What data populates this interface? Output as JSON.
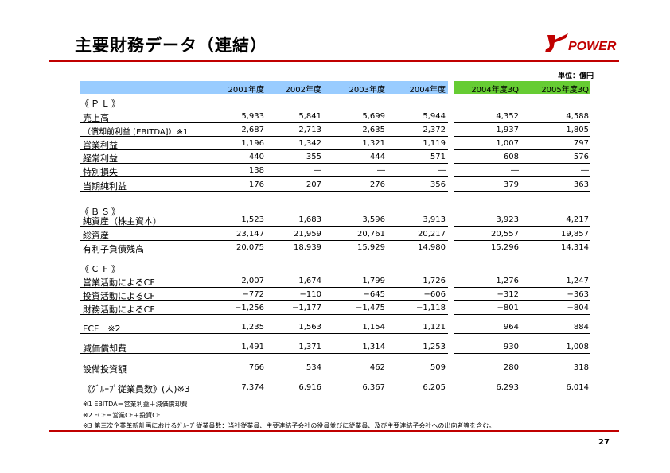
{
  "title": "主要財務データ（連結）",
  "logo_text": "POWER",
  "unit": "単位：億円",
  "columns": [
    "2001年度",
    "2002年度",
    "2003年度",
    "2004年度",
    "2004年度3Q",
    "2005年度3Q"
  ],
  "sections": {
    "pl": "《ＰＬ》",
    "bs": "《ＢＳ》",
    "cf": "《ＣＦ》"
  },
  "rows": {
    "sales": {
      "label": "売上高",
      "values": [
        "5,933",
        "5,841",
        "5,699",
        "5,944",
        "4,352",
        "4,588"
      ]
    },
    "ebitda": {
      "label": "（償却前利益 [EBITDA]）※1",
      "values": [
        "2,687",
        "2,713",
        "2,635",
        "2,372",
        "1,937",
        "1,805"
      ]
    },
    "op_income": {
      "label": "営業利益",
      "values": [
        "1,196",
        "1,342",
        "1,321",
        "1,119",
        "1,007",
        "797"
      ]
    },
    "ordinary": {
      "label": "経常利益",
      "values": [
        "440",
        "355",
        "444",
        "571",
        "608",
        "576"
      ]
    },
    "extra_loss": {
      "label": "特別損失",
      "values": [
        "138",
        "―",
        "―",
        "―",
        "―",
        "―"
      ]
    },
    "net_income": {
      "label": "当期純利益",
      "values": [
        "176",
        "207",
        "276",
        "356",
        "379",
        "363"
      ]
    },
    "net_assets": {
      "label": "純資産（株主資本）",
      "values": [
        "1,523",
        "1,683",
        "3,596",
        "3,913",
        "3,923",
        "4,217"
      ]
    },
    "total_assets": {
      "label": "総資産",
      "values": [
        "23,147",
        "21,959",
        "20,761",
        "20,217",
        "20,557",
        "19,857"
      ]
    },
    "debt": {
      "label": "有利子負債残高",
      "values": [
        "20,075",
        "18,939",
        "15,929",
        "14,980",
        "15,296",
        "14,314"
      ]
    },
    "cf_op": {
      "label": "営業活動によるCF",
      "values": [
        "2,007",
        "1,674",
        "1,799",
        "1,726",
        "1,276",
        "1,247"
      ]
    },
    "cf_inv": {
      "label": "投資活動によるCF",
      "values": [
        "−772",
        "−110",
        "−645",
        "−606",
        "−312",
        "−363"
      ]
    },
    "cf_fin": {
      "label": "財務活動によるCF",
      "values": [
        "−1,256",
        "−1,177",
        "−1,475",
        "−1,118",
        "−801",
        "−804"
      ]
    },
    "fcf": {
      "label": "FCF　※2",
      "values": [
        "1,235",
        "1,563",
        "1,154",
        "1,121",
        "964",
        "884"
      ]
    },
    "depreciation": {
      "label": "減価償却費",
      "values": [
        "1,491",
        "1,371",
        "1,314",
        "1,253",
        "930",
        "1,008"
      ]
    },
    "capex": {
      "label": "設備投資額",
      "values": [
        "766",
        "534",
        "462",
        "509",
        "280",
        "318"
      ]
    },
    "employees": {
      "label": "《ｸﾞﾙｰﾌﾟ従業員数》(人)※3",
      "values": [
        "7,374",
        "6,916",
        "6,367",
        "6,205",
        "6,293",
        "6,014"
      ]
    }
  },
  "footnotes": [
    "※1 EBITDA＝営業利益＋減価償却費",
    "※2 FCF＝営業CF＋投資CF",
    "※3 第三次企業革新計画におけるｸﾞﾙｰﾌﾟ従業員数：当社従業員、主要連結子会社の役員並びに従業員、及び主要連結子会社への出向者等を含む。"
  ],
  "page_number": "27",
  "colors": {
    "accent": "#c00000",
    "header_blue": "#99ccff",
    "header_green": "#66cc33"
  }
}
